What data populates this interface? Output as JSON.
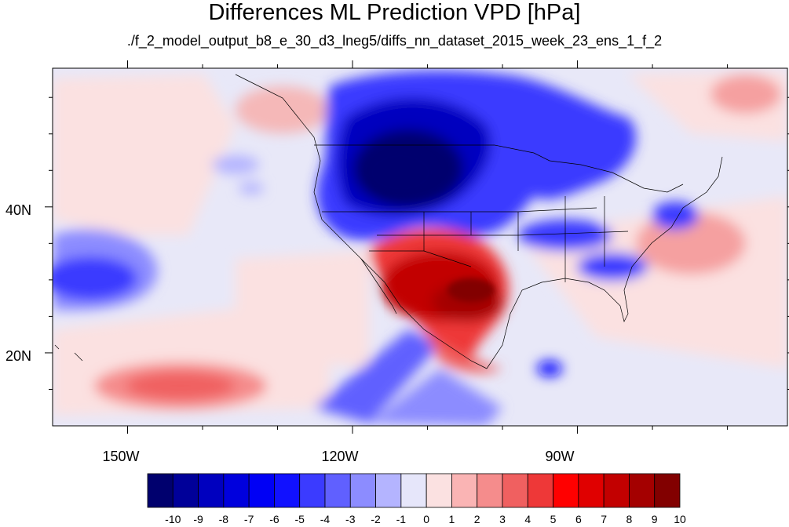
{
  "title": "Differences ML Prediction VPD [hPa]",
  "subtitle": "./f_2_model_output_b8_e_30_d3_lneg5/diffs_nn_dataset_2015_week_23_ens_1_f_2",
  "lat_labels": [
    "40N",
    "20N"
  ],
  "lon_labels": [
    "150W",
    "120W",
    "90W"
  ],
  "colorbar": {
    "labels": [
      "-10",
      "-9",
      "-8",
      "-7",
      "-6",
      "-5",
      "-4",
      "-3",
      "-2",
      "-1",
      "0",
      "1",
      "2",
      "3",
      "4",
      "5",
      "6",
      "7",
      "8",
      "9",
      "10"
    ],
    "colors": [
      "#00006e",
      "#000099",
      "#0000bf",
      "#0000dd",
      "#0000f5",
      "#1111ff",
      "#3b3bff",
      "#6060ff",
      "#8c8cff",
      "#b4b4ff",
      "#e6e6fa",
      "#fbe1e1",
      "#fab4b4",
      "#f58c8c",
      "#f06060",
      "#ee3838",
      "#ff0000",
      "#e00000",
      "#c20000",
      "#a40000",
      "#820000"
    ]
  },
  "map_data": {
    "domain": {
      "lon": [
        -160,
        -62
      ],
      "lat": [
        10,
        59
      ]
    },
    "features": [
      {
        "name": "Northern Rockies / Great Basin drier-than-predicted anomaly",
        "value": -10,
        "center": {
          "lon": -112,
          "lat": 44
        }
      },
      {
        "name": "Southwest US / Mexico positive anomaly",
        "value": 9,
        "center": {
          "lon": -106,
          "lat": 29
        }
      },
      {
        "name": "Subtropical Pacific negative anomaly",
        "value": -5,
        "center": {
          "lon": -154,
          "lat": 31
        }
      },
      {
        "name": "Pacific positive anomaly",
        "value": 3,
        "center": {
          "lon": -145,
          "lat": 17
        }
      },
      {
        "name": "Southeast US negative anomaly",
        "value": -5,
        "center": {
          "lon": -87,
          "lat": 33
        }
      }
    ]
  }
}
